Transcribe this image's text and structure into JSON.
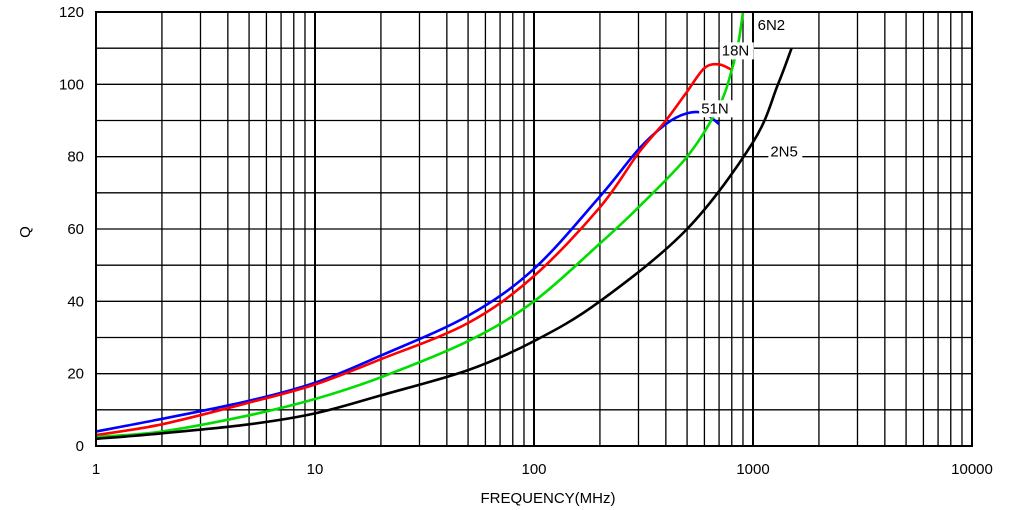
{
  "chart_data": {
    "type": "line",
    "xlabel": "FREQUENCY(MHz)",
    "ylabel": "Q",
    "x_scale": "log",
    "xlim": [
      1,
      10000
    ],
    "ylim": [
      0,
      120
    ],
    "x_ticks": [
      "1",
      "10",
      "100",
      "1000",
      "10000"
    ],
    "y_ticks": [
      "0",
      "20",
      "40",
      "60",
      "80",
      "100",
      "120"
    ],
    "grid": true,
    "legend": "none",
    "series": [
      {
        "name": "51N",
        "color": "#0000ff",
        "x": [
          1,
          2,
          5,
          10,
          20,
          50,
          100,
          200,
          300,
          400,
          500,
          600,
          700
        ],
        "y": [
          4,
          7.5,
          12.5,
          17.5,
          25,
          36,
          49,
          69,
          82,
          89,
          92,
          92,
          89
        ]
      },
      {
        "name": "18N",
        "color": "#ff0000",
        "x": [
          1,
          2,
          5,
          10,
          20,
          50,
          100,
          200,
          300,
          400,
          500,
          600,
          700,
          800
        ],
        "y": [
          3,
          6,
          12,
          17,
          24,
          34,
          47,
          66,
          81,
          90,
          98,
          104.5,
          105.5,
          104
        ]
      },
      {
        "name": "6N2",
        "color": "#00dd00",
        "x": [
          1,
          2,
          5,
          10,
          20,
          50,
          100,
          200,
          300,
          500,
          700,
          800,
          860,
          900
        ],
        "y": [
          2.5,
          4,
          8.5,
          13,
          19,
          29,
          40,
          56,
          66,
          80,
          94,
          104,
          112,
          122
        ]
      },
      {
        "name": "2N5",
        "color": "#000000",
        "x": [
          1,
          2,
          5,
          10,
          20,
          50,
          100,
          200,
          500,
          1000,
          1300,
          1500
        ],
        "y": [
          2,
          3.5,
          6,
          9,
          14,
          21,
          29,
          40,
          60,
          84,
          100,
          110
        ]
      }
    ],
    "series_labels": [
      {
        "text": "51N",
        "x": 580,
        "y": 92
      },
      {
        "text": "18N",
        "x": 720,
        "y": 108
      },
      {
        "text": "6N2",
        "x": 1050,
        "y": 115
      },
      {
        "text": "2N5",
        "x": 1200,
        "y": 80
      }
    ]
  }
}
